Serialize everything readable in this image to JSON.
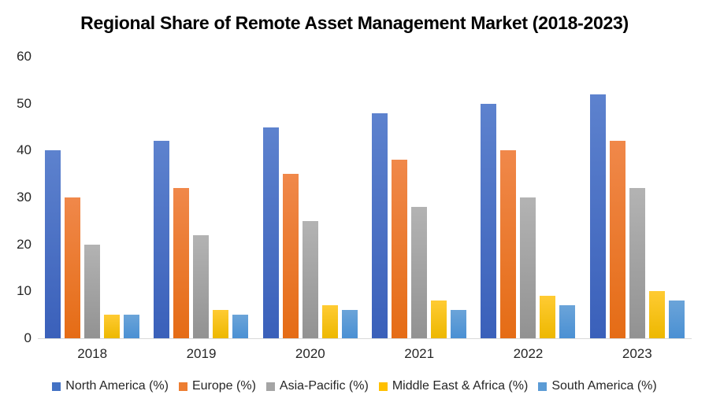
{
  "chart_data": {
    "type": "bar",
    "title": "Regional Share of Remote Asset Management Market (2018-2023)",
    "categories": [
      "2018",
      "2019",
      "2020",
      "2021",
      "2022",
      "2023"
    ],
    "series": [
      {
        "name": "North America (%)",
        "color": "#4472C4",
        "color_top": "#5D82CE",
        "color_bottom": "#3A60BA",
        "values": [
          40,
          42,
          45,
          48,
          50,
          52
        ]
      },
      {
        "name": "Europe (%)",
        "color": "#ED7D31",
        "color_top": "#F0884A",
        "color_bottom": "#E56C15",
        "values": [
          30,
          32,
          35,
          38,
          40,
          42
        ]
      },
      {
        "name": "Asia-Pacific (%)",
        "color": "#A5A5A5",
        "color_top": "#B3B3B3",
        "color_bottom": "#929292",
        "values": [
          20,
          22,
          25,
          28,
          30,
          32
        ]
      },
      {
        "name": "Middle East & Africa (%)",
        "color": "#FFC000",
        "color_top": "#FFCB33",
        "color_bottom": "#EDB800",
        "values": [
          5,
          6,
          7,
          8,
          9,
          10
        ]
      },
      {
        "name": "South America (%)",
        "color": "#5B9BD5",
        "color_top": "#6BA4D9",
        "color_bottom": "#4A90D3",
        "values": [
          5,
          5,
          6,
          6,
          7,
          8
        ]
      }
    ],
    "xlabel": "",
    "ylabel": "",
    "ylim": [
      0,
      60
    ],
    "yticks": [
      0,
      10,
      20,
      30,
      40,
      50,
      60
    ],
    "grid": false,
    "legend_position": "bottom",
    "axis_line_color": "#D9D9D9",
    "tick_label_color": "#262626"
  }
}
